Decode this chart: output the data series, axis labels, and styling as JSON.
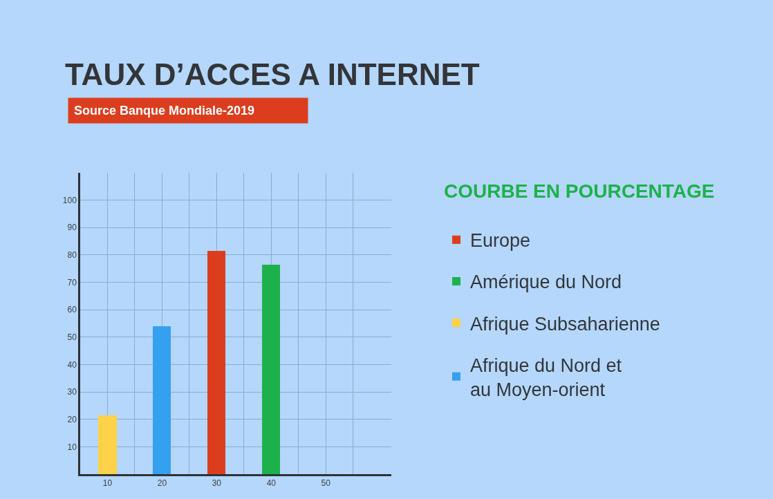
{
  "chart_data": {
    "type": "bar",
    "title": "TAUX D’ACCES A INTERNET",
    "subtitle": "Source Banque Mondiale-2019",
    "legend_title": "COURBE EN POURCENTAGE",
    "series": [
      {
        "name": "Europe",
        "color": "#dc3d1e",
        "x": [
          30
        ],
        "values": [
          81.5
        ]
      },
      {
        "name": "Amérique du Nord",
        "color": "#1db14c",
        "x": [
          40
        ],
        "values": [
          76.5
        ]
      },
      {
        "name": "Afrique Subsaharienne",
        "color": "#ffd24a",
        "x": [
          10
        ],
        "values": [
          21.5
        ]
      },
      {
        "name": "Afrique du Nord et\nau Moyen-orient",
        "color": "#36a0f0",
        "x": [
          20
        ],
        "values": [
          54
        ]
      }
    ],
    "xlim": [
      5,
      62
    ],
    "xticks": [
      10,
      {
        "value": 15,
        "label": null
      },
      20,
      {
        "value": 25,
        "label": null
      },
      30,
      {
        "value": 35,
        "label": null
      },
      40,
      {
        "value": 45,
        "label": null
      },
      50,
      {
        "value": 55,
        "label": null
      }
    ],
    "ylim": [
      0,
      110
    ],
    "yticks": [
      10,
      20,
      30,
      40,
      50,
      60,
      70,
      80,
      90,
      100
    ],
    "grid": true,
    "legend": "right"
  }
}
